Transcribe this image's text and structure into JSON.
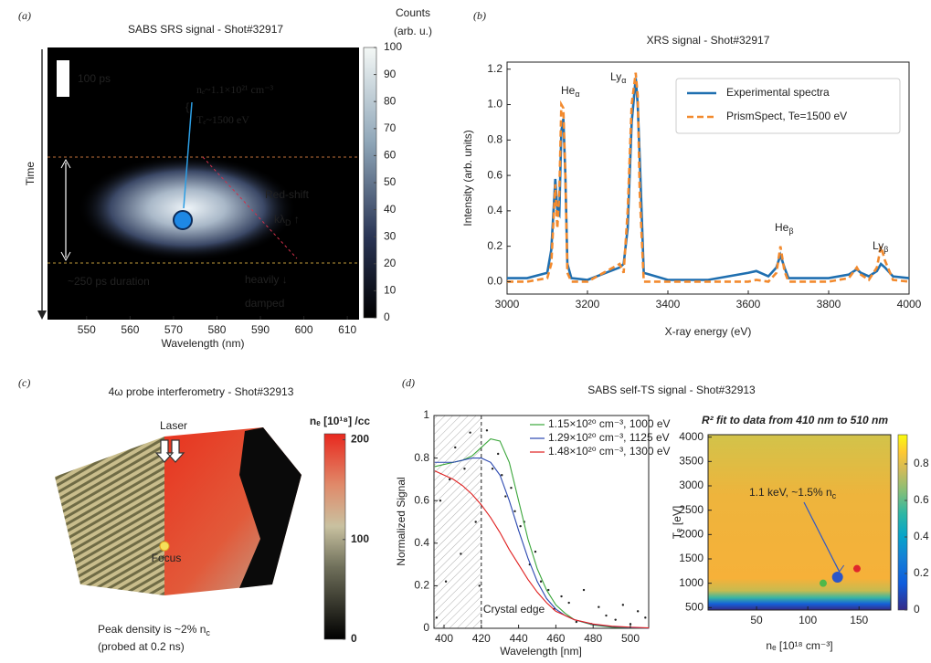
{
  "chart_data": [
    {
      "type": "heatmap",
      "panel": "(a)",
      "title": "SABS SRS signal - Shot#32917",
      "x_label": "Wavelength (nm)",
      "y_label": "Time",
      "xlim": [
        541,
        612.7
      ],
      "xticks": [
        550,
        560,
        570,
        580,
        590,
        600,
        610
      ],
      "colorbar_label": [
        "Counts",
        "(arb. u.)"
      ],
      "clim": [
        0,
        100
      ],
      "cticks": [
        0,
        10,
        20,
        30,
        40,
        50,
        60,
        70,
        80,
        90,
        100
      ],
      "annotations": [
        "100 ps",
        "nₑ~1.1×10²¹ cm⁻³",
        "Tₑ~1500 eV",
        "Red-shift",
        [
          {
            "t": "kλ"
          },
          {
            "t": "D",
            "sub": true
          },
          {
            "t": " ↑"
          }
        ],
        "heavily ↓",
        "damped",
        "~250 ps duration"
      ]
    },
    {
      "type": "line",
      "panel": "(b)",
      "title": "XRS signal - Shot#32917",
      "x_label": "X-ray energy (eV)",
      "y_label": "Intensity (arb. units)",
      "xlim": [
        3000,
        4000
      ],
      "ylim": [
        -0.07,
        1.24
      ],
      "xticks": [
        3000,
        3200,
        3400,
        3600,
        3800,
        4000
      ],
      "yticks": [
        {
          "value": 0,
          "label": "0.0"
        },
        0.2,
        0.4,
        0.6,
        0.8,
        {
          "value": 1,
          "label": "1.0"
        },
        1.2
      ],
      "x": [
        3000,
        3050,
        3100,
        3110,
        3120,
        3125,
        3130,
        3135,
        3140,
        3145,
        3150,
        3160,
        3200,
        3280,
        3290,
        3300,
        3310,
        3320,
        3325,
        3330,
        3340,
        3400,
        3500,
        3600,
        3620,
        3650,
        3670,
        3680,
        3690,
        3700,
        3800,
        3850,
        3870,
        3880,
        3900,
        3920,
        3930,
        3940,
        3960,
        4000
      ],
      "series": [
        {
          "name": "Experimental spectra",
          "color": "#1f6fb0",
          "dash": false,
          "values": [
            0.02,
            0.02,
            0.05,
            0.18,
            0.58,
            0.4,
            0.38,
            0.85,
            0.92,
            0.6,
            0.1,
            0.02,
            0.01,
            0.08,
            0.1,
            0.3,
            0.9,
            1.15,
            1.0,
            0.7,
            0.05,
            0.01,
            0.01,
            0.05,
            0.06,
            0.03,
            0.08,
            0.15,
            0.08,
            0.02,
            0.02,
            0.04,
            0.07,
            0.05,
            0.03,
            0.06,
            0.1,
            0.08,
            0.03,
            0.02
          ]
        },
        {
          "name": "PrismSpect, Te=1500 eV",
          "color": "#f28a2e",
          "dash": true,
          "values": [
            0.0,
            0.0,
            0.02,
            0.1,
            0.55,
            0.3,
            0.5,
            1.0,
            0.98,
            0.6,
            0.05,
            0.0,
            0.0,
            0.1,
            0.05,
            0.4,
            1.0,
            1.18,
            1.05,
            0.5,
            0.0,
            0.0,
            0.0,
            0.0,
            0.01,
            0.0,
            0.05,
            0.2,
            0.06,
            0.0,
            0.0,
            0.02,
            0.08,
            0.04,
            0.01,
            0.08,
            0.2,
            0.12,
            0.01,
            0.0
          ]
        }
      ],
      "annotations": [
        [
          {
            "t": "He"
          },
          {
            "t": "α",
            "sub": true
          }
        ],
        [
          {
            "t": "Ly"
          },
          {
            "t": "α",
            "sub": true
          }
        ],
        [
          {
            "t": "He"
          },
          {
            "t": "β",
            "sub": true
          }
        ],
        [
          {
            "t": "Ly"
          },
          {
            "t": "β",
            "sub": true
          }
        ]
      ]
    },
    {
      "type": "image",
      "panel": "(c)",
      "title": "4ω probe interferometry - Shot#32913",
      "colorbar_label": "nₑ [10¹⁸] /cc",
      "clim": [
        0,
        206
      ],
      "cticks": [
        0,
        100,
        200
      ],
      "annotations": [
        "Laser",
        "Focus",
        [
          {
            "t": "Peak density is ~2% n"
          },
          {
            "t": "c",
            "sub": true
          }
        ],
        "(probed at 0.2 ns)"
      ]
    },
    {
      "type": "line",
      "panel": "(d)",
      "title": "SABS self-TS signal - Shot#32913",
      "x_label": "Wavelength [nm]",
      "y_label": "Normalized Signal",
      "xlim": [
        394.6,
        509.8
      ],
      "ylim": [
        0,
        1
      ],
      "xticks": [
        400,
        420,
        440,
        460,
        480,
        500
      ],
      "yticks": [
        0,
        0.2,
        0.4,
        0.6,
        0.8,
        1
      ],
      "x": [
        395,
        400,
        405,
        410,
        415,
        420,
        425,
        430,
        435,
        440,
        445,
        450,
        455,
        460,
        465,
        470,
        480,
        490,
        500,
        510
      ],
      "series": [
        {
          "name": "1.15×10²⁰ cm⁻³, 1000 eV",
          "color": "#3aa63a",
          "dash": false,
          "values": [
            0.76,
            0.77,
            0.78,
            0.79,
            0.81,
            0.85,
            0.89,
            0.88,
            0.78,
            0.6,
            0.42,
            0.28,
            0.18,
            0.11,
            0.07,
            0.04,
            0.015,
            0.005,
            0.002,
            0.001
          ]
        },
        {
          "name": "1.29×10²⁰ cm⁻³, 1125 eV",
          "color": "#2a47b0",
          "dash": false,
          "values": [
            0.78,
            0.78,
            0.78,
            0.79,
            0.8,
            0.8,
            0.78,
            0.72,
            0.6,
            0.46,
            0.33,
            0.22,
            0.14,
            0.09,
            0.06,
            0.04,
            0.018,
            0.008,
            0.003,
            0.001
          ]
        },
        {
          "name": "1.48×10²⁰ cm⁻³, 1300 eV",
          "color": "#e02020",
          "dash": false,
          "values": [
            0.74,
            0.72,
            0.7,
            0.67,
            0.63,
            0.58,
            0.52,
            0.45,
            0.37,
            0.3,
            0.23,
            0.17,
            0.12,
            0.08,
            0.06,
            0.04,
            0.02,
            0.01,
            0.005,
            0.002
          ]
        }
      ],
      "points": {
        "x": [
          396,
          398,
          401,
          403,
          406,
          409,
          411,
          414,
          417,
          419,
          423,
          426,
          429,
          431,
          433,
          436,
          438,
          441,
          443,
          446,
          449,
          452,
          456,
          459,
          463,
          467,
          471,
          475,
          479,
          483,
          487,
          492,
          496,
          500,
          504,
          508
        ],
        "y": [
          0.05,
          0.6,
          0.22,
          0.7,
          0.85,
          0.35,
          0.75,
          0.92,
          0.5,
          0.2,
          0.93,
          0.75,
          0.82,
          0.72,
          0.62,
          0.66,
          0.55,
          0.48,
          0.5,
          0.3,
          0.36,
          0.22,
          0.18,
          0.09,
          0.15,
          0.12,
          0.03,
          0.18,
          0.02,
          0.1,
          0.06,
          0.04,
          0.11,
          0.02,
          0.08,
          0.05
        ]
      },
      "edge": 420,
      "edge_label": "Crystal edge"
    },
    {
      "type": "heatmap",
      "title": "R² fit to data from 410 nm to 510 nm",
      "x_label": "nₑ [10¹⁸ cm⁻³]",
      "y_label": "Tₑ [eV]",
      "xlim": [
        2.7,
        181
      ],
      "ylim": [
        450,
        4050
      ],
      "xticks": [
        50,
        100,
        150
      ],
      "yticks": [
        500,
        1000,
        1500,
        2000,
        2500,
        3000,
        3500,
        4000
      ],
      "clim": [
        0,
        0.96
      ],
      "cticks": [
        0,
        0.2,
        0.4,
        0.6,
        0.8
      ],
      "points": {
        "x": [
          115,
          129,
          148
        ],
        "y": [
          1000,
          1125,
          1300
        ],
        "colors": [
          "#4fb84a",
          "#2c56c8",
          "#e0262b"
        ]
      },
      "annotation": [
        {
          "t": "1.1 keV, ~1.5% n"
        },
        {
          "t": "c",
          "sub": true
        }
      ]
    }
  ]
}
